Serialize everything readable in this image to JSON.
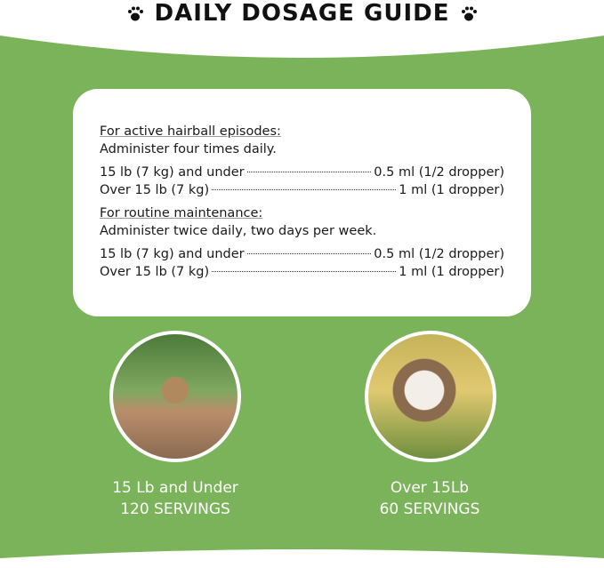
{
  "title": "DAILY DOSAGE GUIDE",
  "sections": [
    {
      "heading": "For active hairball episodes:",
      "instruction": "Administer four times daily.",
      "rows": [
        {
          "weight": "15 lb (7 kg) and under",
          "dose": "0.5 ml (1/2 dropper)"
        },
        {
          "weight": "Over 15 lb (7 kg)",
          "dose": "1 ml (1 dropper)"
        }
      ]
    },
    {
      "heading": "For routine maintenance:",
      "instruction": "Administer twice daily, two days per week.",
      "rows": [
        {
          "weight": "15 lb (7 kg) and under",
          "dose": "0.5 ml (1/2 dropper)"
        },
        {
          "weight": "Over 15 lb (7 kg)",
          "dose": "1 ml (1 dropper)"
        }
      ]
    }
  ],
  "cats": [
    {
      "line1": "15 Lb and Under",
      "line2": "120 SERVINGS"
    },
    {
      "line1": "Over 15Lb",
      "line2": "60 SERVINGS"
    }
  ],
  "colors": {
    "background": "#7bb35a",
    "card": "#ffffff"
  }
}
